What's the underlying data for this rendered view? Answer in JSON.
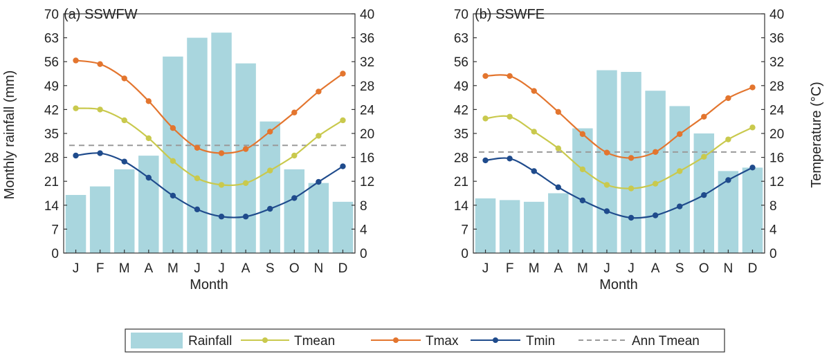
{
  "legend": {
    "rainfall": "Rainfall",
    "tmean": "Tmean",
    "tmax": "Tmax",
    "tmin": "Tmin",
    "ann_tmean": "Ann Tmean"
  },
  "colors": {
    "rainfall": "#a9d6de",
    "tmean": "#c9c94d",
    "tmax": "#e3752e",
    "tmin": "#1f4b8c",
    "ann_tmean": "#9a9a9a"
  },
  "chart_data": [
    {
      "type": "bar",
      "title": "(a) SSWFW",
      "xlabel": "Month",
      "ylabel": "Monthly rainfall (mm)",
      "y2label": "",
      "categories": [
        "J",
        "F",
        "M",
        "A",
        "M",
        "J",
        "J",
        "A",
        "S",
        "O",
        "N",
        "D"
      ],
      "ylim": [
        0,
        70
      ],
      "yticks": [
        0,
        7,
        14,
        21,
        28,
        35,
        42,
        49,
        56,
        63,
        70
      ],
      "y2lim": [
        0,
        40
      ],
      "y2ticks": [
        0,
        4,
        8,
        12,
        16,
        20,
        24,
        28,
        32,
        36,
        40
      ],
      "rainfall": [
        17,
        19.5,
        24.5,
        28.5,
        57.5,
        63,
        64.5,
        55.5,
        38.5,
        24.5,
        20.5,
        15
      ],
      "tmean": [
        24.2,
        24.0,
        22.2,
        19.2,
        15.4,
        12.5,
        11.4,
        11.7,
        13.8,
        16.3,
        19.6,
        22.2
      ],
      "tmax": [
        32.2,
        31.6,
        29.2,
        25.4,
        20.9,
        17.6,
        16.7,
        17.4,
        20.3,
        23.5,
        27.0,
        30.0
      ],
      "tmin": [
        16.3,
        16.7,
        15.3,
        12.6,
        9.6,
        7.3,
        6.1,
        6.1,
        7.4,
        9.2,
        11.9,
        14.5
      ],
      "ann_tmean": 18.0,
      "grid": false,
      "legend": "bottom"
    },
    {
      "type": "bar",
      "title": "(b) SSWFE",
      "xlabel": "Month",
      "ylabel": "",
      "y2label": "Temperature (°C)",
      "categories": [
        "J",
        "F",
        "M",
        "A",
        "M",
        "J",
        "J",
        "A",
        "S",
        "O",
        "N",
        "D"
      ],
      "ylim": [
        0,
        70
      ],
      "yticks": [
        0,
        7,
        14,
        21,
        28,
        35,
        42,
        49,
        56,
        63,
        70
      ],
      "y2lim": [
        0,
        40
      ],
      "y2ticks": [
        0,
        4,
        8,
        12,
        16,
        20,
        24,
        28,
        32,
        36,
        40
      ],
      "rainfall": [
        16,
        15.5,
        15,
        17.5,
        36.5,
        53.5,
        53,
        47.5,
        43,
        35,
        24,
        25
      ],
      "tmean": [
        22.5,
        22.8,
        20.3,
        17.5,
        14.0,
        11.4,
        10.8,
        11.6,
        13.7,
        16.1,
        19.0,
        21.0
      ],
      "tmax": [
        29.6,
        29.6,
        27.1,
        23.6,
        19.9,
        16.8,
        15.9,
        16.9,
        19.9,
        22.8,
        25.9,
        27.7
      ],
      "tmin": [
        15.5,
        15.8,
        13.7,
        11.0,
        8.8,
        7.0,
        5.9,
        6.3,
        7.8,
        9.7,
        12.2,
        14.3
      ],
      "ann_tmean": 16.9,
      "grid": false,
      "legend": "bottom"
    }
  ]
}
